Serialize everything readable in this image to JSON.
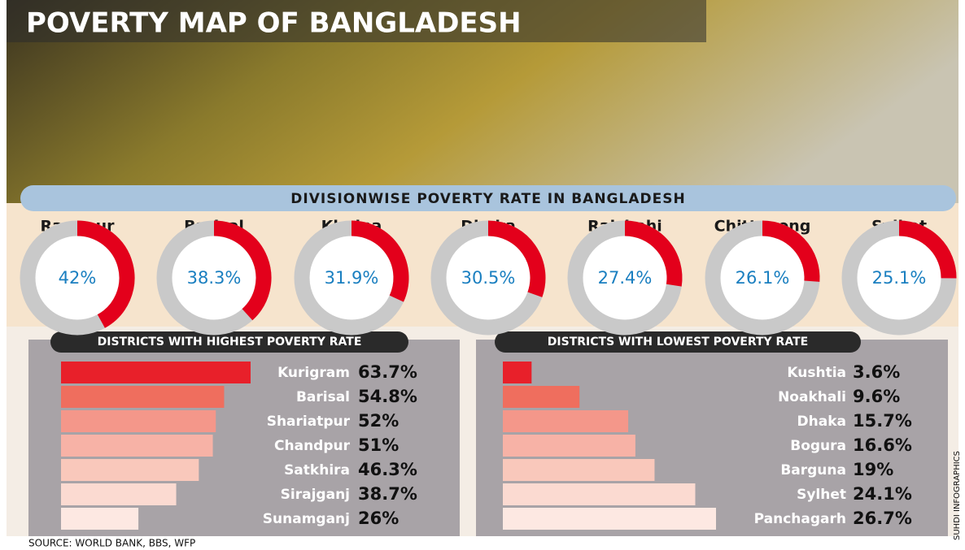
{
  "title": "POVERTY MAP OF BANGLADESH",
  "source": "SOURCE: WORLD BANK, BBS, WFP",
  "credit": "SUHDI INFOGRAPHICS",
  "chart_data": [
    {
      "type": "donut",
      "title": "DIVISIONWISE POVERTY RATE IN BANGLADESH",
      "categories": [
        "Rangpur",
        "Barisal",
        "Khulna",
        "Dhaka",
        "Rajshahi",
        "Chittagong",
        "Sylhet"
      ],
      "values": [
        42,
        38.3,
        31.9,
        30.5,
        27.4,
        26.1,
        25.1
      ],
      "value_labels": [
        "42%",
        "38.3%",
        "31.9%",
        "30.5%",
        "27.4%",
        "26.1%",
        "25.1%"
      ],
      "color": "#e3001b",
      "track_color": "#c9c9c9"
    },
    {
      "type": "hbar",
      "title": "DISTRICTS WITH HIGHEST POVERTY RATE",
      "categories": [
        "Kurigram",
        "Barisal",
        "Shariatpur",
        "Chandpur",
        "Satkhira",
        "Sirajganj",
        "Sunamganj"
      ],
      "values": [
        63.7,
        54.8,
        52,
        51,
        46.3,
        38.7,
        26
      ],
      "value_labels": [
        "63.7%",
        "54.8%",
        "52%",
        "51%",
        "46.3%",
        "38.7%",
        "26%"
      ],
      "colors": [
        "#e8202a",
        "#ef6e5e",
        "#f4978a",
        "#f7b2a6",
        "#f9c8bb",
        "#fbdad1",
        "#fde8e2"
      ]
    },
    {
      "type": "hbar",
      "title": "DISTRICTS WITH LOWEST POVERTY RATE",
      "categories": [
        "Kushtia",
        "Noakhali",
        "Dhaka",
        "Bogura",
        "Barguna",
        "Sylhet",
        "Panchagarh"
      ],
      "values": [
        3.6,
        9.6,
        15.7,
        16.6,
        19,
        24.1,
        26.7
      ],
      "value_labels": [
        "3.6%",
        "9.6%",
        "15.7%",
        "16.6%",
        "19%",
        "24.1%",
        "26.7%"
      ],
      "colors": [
        "#e8202a",
        "#ef6e5e",
        "#f4978a",
        "#f7b2a6",
        "#f9c8bb",
        "#fbdad1",
        "#fde8e2"
      ]
    }
  ]
}
